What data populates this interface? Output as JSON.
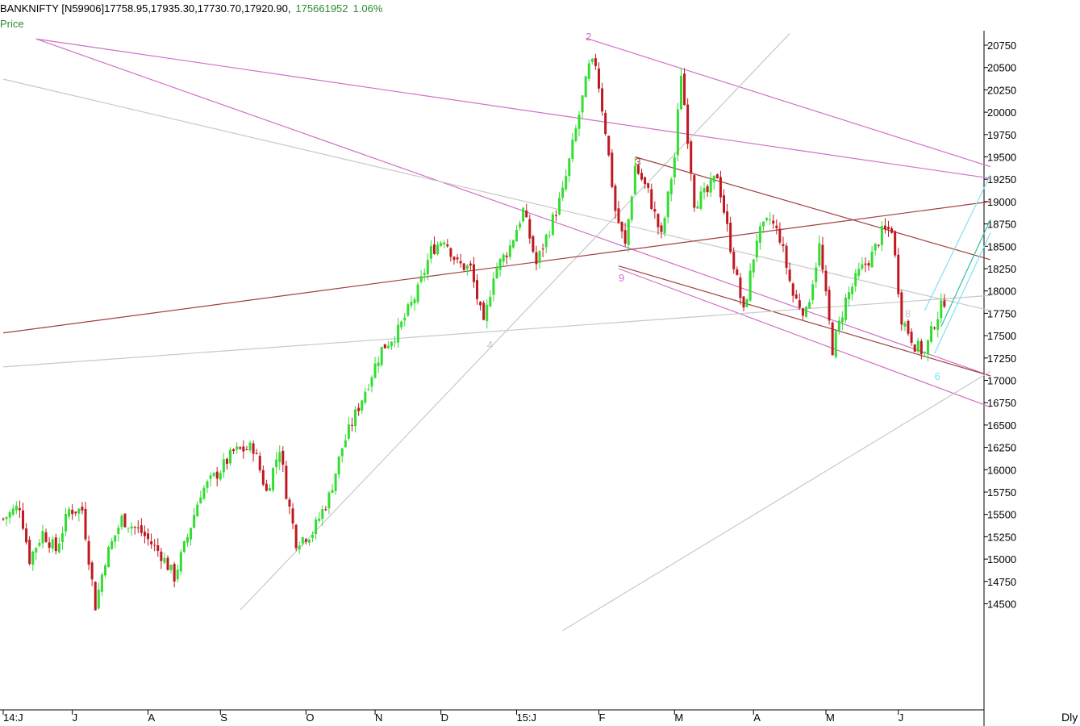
{
  "header": {
    "symbol_info": "BANKNIFTY [N59906]17758.95,17935.30,17730.70,17920.90,",
    "volume": "175661952",
    "change": "1.06%",
    "panel_label": "Price"
  },
  "period_label": "Dly",
  "colors": {
    "up": "#33dd33",
    "down": "#c01820",
    "pink": "#d070c8",
    "gray": "#c8c8c8",
    "brown": "#a04040",
    "cyan": "#80e0f0",
    "green_line": "#30c0a0"
  },
  "chart_data": {
    "type": "candlestick",
    "y_axis": {
      "min": 14250,
      "max": 20850,
      "ticks": [
        20750,
        20500,
        20250,
        20000,
        19750,
        19500,
        19250,
        19000,
        18750,
        18500,
        18250,
        18000,
        17750,
        17500,
        17250,
        17000,
        16750,
        16500,
        16250,
        16000,
        15750,
        15500,
        15250,
        15000,
        14750,
        14500
      ]
    },
    "x_axis": {
      "labels": [
        {
          "t": "14:J",
          "bar": 0
        },
        {
          "t": "J",
          "bar": 21
        },
        {
          "t": "A",
          "bar": 44
        },
        {
          "t": "S",
          "bar": 66
        },
        {
          "t": "O",
          "bar": 92
        },
        {
          "t": "N",
          "bar": 113
        },
        {
          "t": "D",
          "bar": 133
        },
        {
          "t": "15:J",
          "bar": 156
        },
        {
          "t": "F",
          "bar": 181
        },
        {
          "t": "M",
          "bar": 204
        },
        {
          "t": "A",
          "bar": 228
        },
        {
          "t": "M",
          "bar": 250
        },
        {
          "t": "J",
          "bar": 272
        }
      ],
      "bar_count": 300
    },
    "anchors": [
      [
        0,
        15450
      ],
      [
        5,
        15600
      ],
      [
        8,
        15000
      ],
      [
        12,
        15300
      ],
      [
        16,
        15100
      ],
      [
        20,
        15550
      ],
      [
        24,
        15550
      ],
      [
        28,
        14480
      ],
      [
        31,
        15000
      ],
      [
        36,
        15450
      ],
      [
        42,
        15300
      ],
      [
        48,
        15050
      ],
      [
        52,
        14800
      ],
      [
        56,
        15250
      ],
      [
        60,
        15750
      ],
      [
        66,
        16000
      ],
      [
        70,
        16200
      ],
      [
        76,
        16250
      ],
      [
        80,
        15750
      ],
      [
        84,
        16250
      ],
      [
        86,
        15750
      ],
      [
        89,
        15200
      ],
      [
        94,
        15300
      ],
      [
        99,
        15700
      ],
      [
        103,
        16250
      ],
      [
        109,
        16800
      ],
      [
        115,
        17350
      ],
      [
        120,
        17550
      ],
      [
        126,
        18000
      ],
      [
        130,
        18450
      ],
      [
        134,
        18600
      ],
      [
        138,
        18300
      ],
      [
        142,
        18250
      ],
      [
        146,
        17600
      ],
      [
        149,
        18200
      ],
      [
        154,
        18500
      ],
      [
        158,
        18900
      ],
      [
        162,
        18300
      ],
      [
        166,
        18700
      ],
      [
        170,
        19100
      ],
      [
        174,
        19800
      ],
      [
        178,
        20500
      ],
      [
        180,
        20550
      ],
      [
        183,
        19800
      ],
      [
        186,
        18900
      ],
      [
        189,
        18500
      ],
      [
        192,
        19400
      ],
      [
        196,
        19100
      ],
      [
        200,
        18600
      ],
      [
        204,
        19500
      ],
      [
        206,
        20450
      ],
      [
        210,
        19000
      ],
      [
        214,
        19100
      ],
      [
        217,
        19300
      ],
      [
        222,
        18300
      ],
      [
        225,
        17750
      ],
      [
        229,
        18600
      ],
      [
        233,
        18800
      ],
      [
        236,
        18600
      ],
      [
        240,
        17950
      ],
      [
        244,
        17750
      ],
      [
        248,
        18500
      ],
      [
        252,
        17350
      ],
      [
        256,
        17900
      ],
      [
        260,
        18200
      ],
      [
        264,
        18400
      ],
      [
        267,
        18650
      ],
      [
        270,
        18700
      ],
      [
        273,
        17700
      ],
      [
        277,
        17400
      ],
      [
        280,
        17300
      ],
      [
        283,
        17650
      ],
      [
        286,
        17900
      ]
    ],
    "pivots": [
      {
        "label": "2",
        "bar": 177,
        "price": 20850,
        "color": "pink"
      },
      {
        "label": "3",
        "bar": 192,
        "price": 19450,
        "color": "brown"
      },
      {
        "label": "9",
        "bar": 187,
        "price": 18150,
        "color": "pink"
      },
      {
        "label": "4",
        "bar": 147,
        "price": 17400,
        "color": "gray"
      },
      {
        "label": "8",
        "bar": 274,
        "price": 17750,
        "color": "gray"
      },
      {
        "label": "6",
        "bar": 283,
        "price": 17050,
        "color": "cyan"
      }
    ],
    "trendlines": [
      {
        "from": [
          10,
          20820
        ],
        "to": [
          300,
          19260
        ],
        "color": "pink"
      },
      {
        "from": [
          10,
          20820
        ],
        "to": [
          300,
          17050
        ],
        "color": "pink"
      },
      {
        "from": [
          177,
          20830
        ],
        "to": [
          300,
          19390
        ],
        "color": "pink"
      },
      {
        "from": [
          187,
          18250
        ],
        "to": [
          300,
          16700
        ],
        "color": "pink"
      },
      {
        "from": [
          187,
          18280
        ],
        "to": [
          300,
          17050
        ],
        "color": "brown"
      },
      {
        "from": [
          0,
          20370
        ],
        "to": [
          300,
          17780
        ],
        "color": "gray"
      },
      {
        "from": [
          0,
          17150
        ],
        "to": [
          300,
          17950
        ],
        "color": "gray"
      },
      {
        "from": [
          72,
          14430
        ],
        "to": [
          239,
          20880
        ],
        "color": "gray"
      },
      {
        "from": [
          170,
          14200
        ],
        "to": [
          300,
          17100
        ],
        "color": "gray"
      },
      {
        "from": [
          0,
          17530
        ],
        "to": [
          300,
          19000
        ],
        "color": "brown"
      },
      {
        "from": [
          192,
          19500
        ],
        "to": [
          300,
          18350
        ],
        "color": "brown"
      },
      {
        "from": [
          280,
          17780
        ],
        "to": [
          300,
          19300
        ],
        "color": "cyan"
      },
      {
        "from": [
          283,
          17300
        ],
        "to": [
          300,
          18650
        ],
        "color": "cyan"
      },
      {
        "from": [
          285,
          17600
        ],
        "to": [
          300,
          18800
        ],
        "color": "green_line"
      }
    ]
  }
}
